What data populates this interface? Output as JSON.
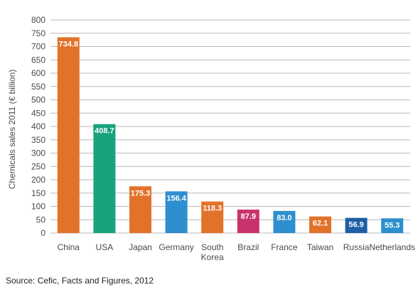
{
  "chart_data": {
    "type": "bar",
    "title": "",
    "xlabel": "",
    "ylabel": "Chemicals sales 2011 (€ billion)",
    "ylim": [
      0,
      800
    ],
    "yticks": [
      0,
      50,
      100,
      150,
      200,
      250,
      300,
      350,
      400,
      450,
      500,
      550,
      600,
      650,
      700,
      750,
      800
    ],
    "grid": true,
    "categories": [
      "China",
      "USA",
      "Japan",
      "Germany",
      "South Korea",
      "Brazil",
      "France",
      "Taiwan",
      "Russia",
      "Netherlands"
    ],
    "category_lines": [
      [
        "China"
      ],
      [
        "USA"
      ],
      [
        "Japan"
      ],
      [
        "Germany"
      ],
      [
        "South",
        "Korea"
      ],
      [
        "Brazil"
      ],
      [
        "France"
      ],
      [
        "Taiwan"
      ],
      [
        "Russia"
      ],
      [
        "Netherlands"
      ]
    ],
    "values": [
      734.8,
      408.7,
      175.3,
      156.4,
      118.3,
      87.9,
      83.0,
      62.1,
      56.9,
      55.3
    ],
    "value_labels": [
      "734.8",
      "408.7",
      "175.3",
      "156.4",
      "118.3",
      "87.9",
      "83.0",
      "62.1",
      "56.9",
      "55.3"
    ],
    "colors": [
      "#e2722a",
      "#1aa17e",
      "#e2722a",
      "#2d8fcf",
      "#e2722a",
      "#c8336e",
      "#2d8fcf",
      "#e2722a",
      "#1e5fa6",
      "#2d8fcf"
    ],
    "gridline_color": "#b8b8b8",
    "plot_background": "#ffffff"
  },
  "source": "Source: Cefic, Facts and Figures, 2012"
}
